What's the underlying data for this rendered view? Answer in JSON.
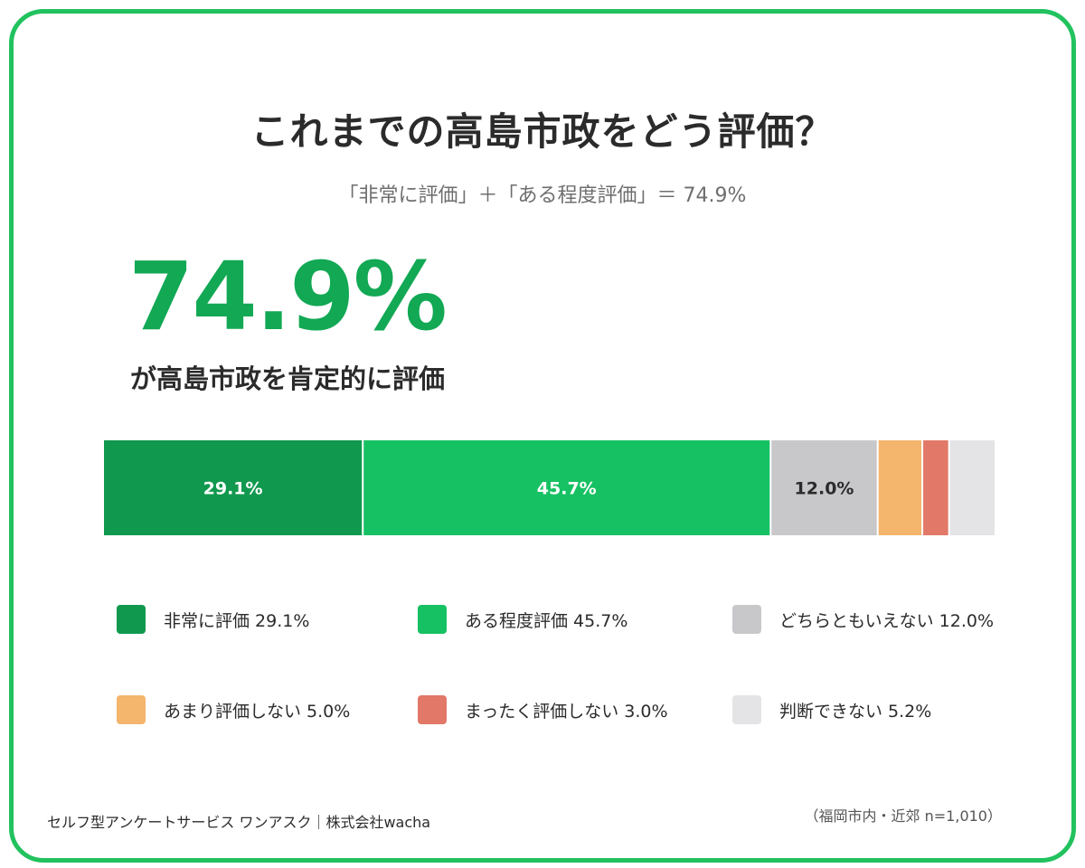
{
  "title": "これまでの高島市政をどう評価？",
  "subtitle": "「非常に評価」＋「ある程度評価」＝ 74.9%",
  "headline": {
    "value": "74.9%",
    "caption": "が高島市政を肯定的に評価"
  },
  "chart_data": {
    "type": "bar",
    "orientation": "horizontal-stacked-100",
    "categories": [
      "非常に評価",
      "ある程度評価",
      "どちらともいえない",
      "あまり評価しない",
      "まったく評価しない",
      "判断できない"
    ],
    "values": [
      29.1,
      45.7,
      12.0,
      5.0,
      3.0,
      5.2
    ],
    "value_labels": [
      "29.1%",
      "45.7%",
      "12.0%",
      "",
      "",
      ""
    ],
    "colors": [
      "#10994e",
      "#16c163",
      "#c8c8cb",
      "#f4b56d",
      "#e27868",
      "#e4e4e6"
    ],
    "label_colors": [
      "#ffffff",
      "#ffffff",
      "#2b2b2b",
      "",
      "",
      ""
    ],
    "legend_placement": "bottom",
    "legend": [
      {
        "label": "非常に評価  29.1%",
        "color": "#10994e"
      },
      {
        "label": "ある程度評価  45.7%",
        "color": "#16c163"
      },
      {
        "label": "どちらともいえない  12.0%",
        "color": "#c8c8cb"
      },
      {
        "label": "あまり評価しない  5.0%",
        "color": "#f4b56d"
      },
      {
        "label": "まったく評価しない  3.0%",
        "color": "#e27868"
      },
      {
        "label": "判断できない  5.2%",
        "color": "#e4e4e6"
      }
    ]
  },
  "footer": {
    "source": "セルフ型アンケートサービス ワンアスク｜株式会社wacha",
    "sample": "（福岡市内・近郊 n=1,010）"
  },
  "colors": {
    "frame": "#22c25e",
    "accent": "#12a854"
  }
}
